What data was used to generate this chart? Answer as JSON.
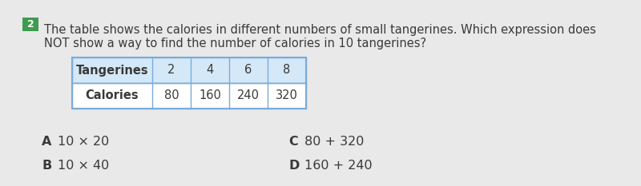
{
  "background_color": "#e9e9e9",
  "question_number": "2",
  "question_number_bg": "#3d9c4f",
  "question_text_line1": "The table shows the calories in different numbers of small tangerines. Which expression does",
  "question_text_line2": "NOT show a way to find the number of calories in 10 tangerines?",
  "table_header": [
    "Tangerines",
    "2",
    "4",
    "6",
    "8"
  ],
  "table_row": [
    "Calories",
    "80",
    "160",
    "240",
    "320"
  ],
  "table_border_color": "#7aabdc",
  "table_header_bg": "#d4e8f7",
  "table_row_bg": "#ffffff",
  "answer_A_label": "A",
  "answer_A": "10 × 20",
  "answer_B_label": "B",
  "answer_B": "10 × 40",
  "answer_C_label": "C",
  "answer_C": "80 + 320",
  "answer_D_label": "D",
  "answer_D": "160 + 240",
  "text_color": "#3a3a3a",
  "font_size_question": 10.5,
  "font_size_table": 10.5,
  "font_size_answers": 11.5,
  "badge_fontsize": 9
}
